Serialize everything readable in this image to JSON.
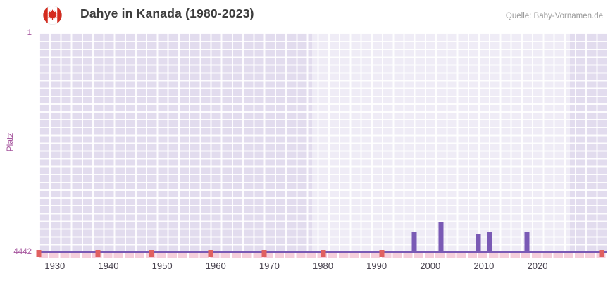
{
  "header": {
    "title": "Dahye in Kanada (1980-2023)",
    "source": "Quelle: Baby-Vornamen.de",
    "flag_icon": "canada-flag"
  },
  "colors": {
    "bar": "#7a5ab5",
    "axis-line": "#7a5ab5",
    "axis-magenta": "#a6569e",
    "x-label": "#49434f",
    "plot-bg": "#e2dcee",
    "strip-pink": "#f5cedb",
    "marker-red": "#e06060",
    "title-text": "#3d3d3d",
    "source-text": "#999999",
    "flag-red": "#d52b1e"
  },
  "chart_data": {
    "type": "bar",
    "title": "Dahye in Kanada (1980-2023)",
    "subtitle": "",
    "xlabel": "",
    "ylabel": "Platz",
    "legend": "none",
    "grid": true,
    "y_axis": {
      "min": 1,
      "max": 4442,
      "inverted": true,
      "tick_labels": [
        "1",
        "4442"
      ]
    },
    "x_axis": {
      "range": [
        1927,
        2033
      ],
      "tick_years": [
        1930,
        1940,
        1950,
        1960,
        1970,
        1980,
        1990,
        2000,
        2010,
        2020
      ]
    },
    "highlight_band_years": [
      1978,
      2026
    ],
    "series": [
      {
        "name": "Platz",
        "points": [
          {
            "year": 1997,
            "rank": 4060
          },
          {
            "year": 2002,
            "rank": 3860
          },
          {
            "year": 2009,
            "rank": 4100
          },
          {
            "year": 2011,
            "rank": 4040
          },
          {
            "year": 2018,
            "rank": 4060
          }
        ]
      }
    ],
    "no_rank_marker_years": [
      1927,
      1938,
      1948,
      1959,
      1969,
      1980,
      1991,
      2032
    ]
  }
}
